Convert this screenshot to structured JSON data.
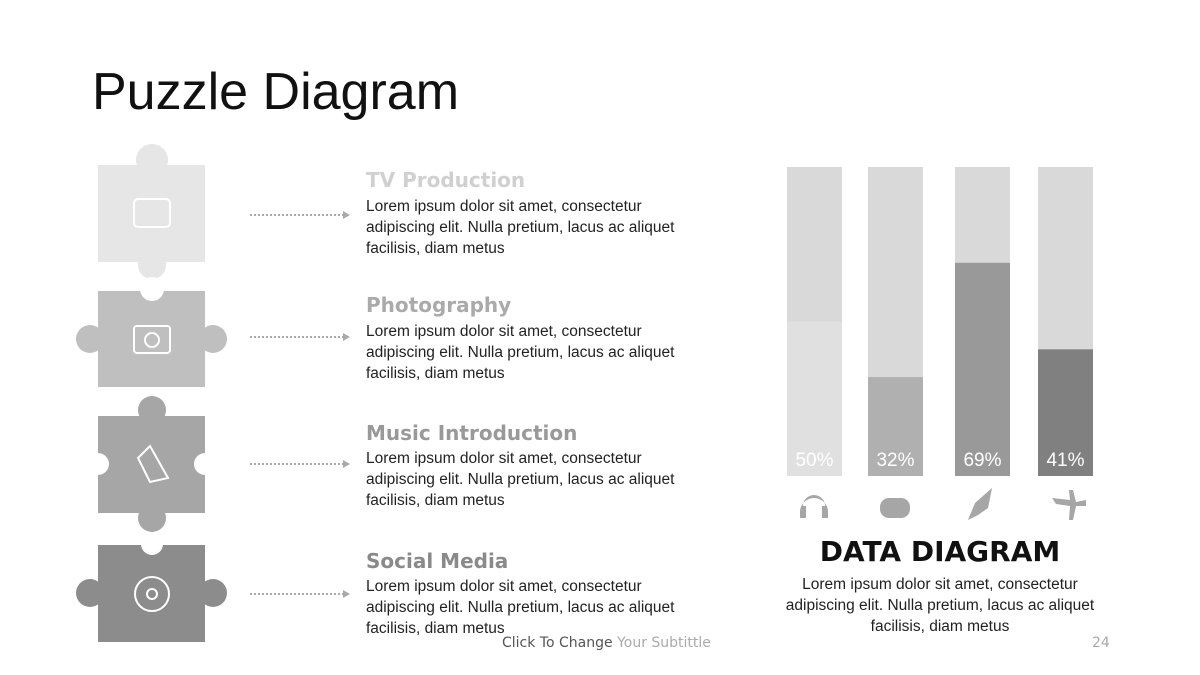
{
  "title": "Puzzle Diagram",
  "items": [
    {
      "heading": "TV Production",
      "body": "Lorem ipsum dolor sit amet, consectetur adipiscing elit. Nulla pretium, lacus ac aliquet facilisis, diam metus"
    },
    {
      "heading": "Photography",
      "body": "Lorem ipsum dolor sit amet, consectetur adipiscing elit. Nulla pretium, lacus ac aliquet facilisis, diam metus"
    },
    {
      "heading": "Music Introduction",
      "body": "Lorem ipsum dolor sit amet, consectetur adipiscing elit. Nulla pretium, lacus ac aliquet facilisis, diam metus"
    },
    {
      "heading": "Social Media",
      "body": "Lorem ipsum dolor sit amet, consectetur adipiscing elit. Nulla pretium, lacus ac aliquet facilisis, diam metus"
    }
  ],
  "chart_data": {
    "type": "bar",
    "values": [
      50,
      32,
      69,
      41
    ],
    "value_labels": [
      "50%",
      "32%",
      "69%",
      "41%"
    ],
    "colors": [
      "#e0e0e0",
      "#b0b0b0",
      "#999999",
      "#808080"
    ],
    "track_color": "#d9d9d9",
    "ylim": [
      0,
      100
    ]
  },
  "diagram": {
    "title": "DATA DIAGRAM",
    "body": "Lorem ipsum dolor sit amet, consectetur adipiscing elit. Nulla pretium, lacus ac aliquet facilisis, diam metus"
  },
  "footer": {
    "text": "Click To Change",
    "subtitle": "Your Subtittle",
    "page": "24"
  }
}
